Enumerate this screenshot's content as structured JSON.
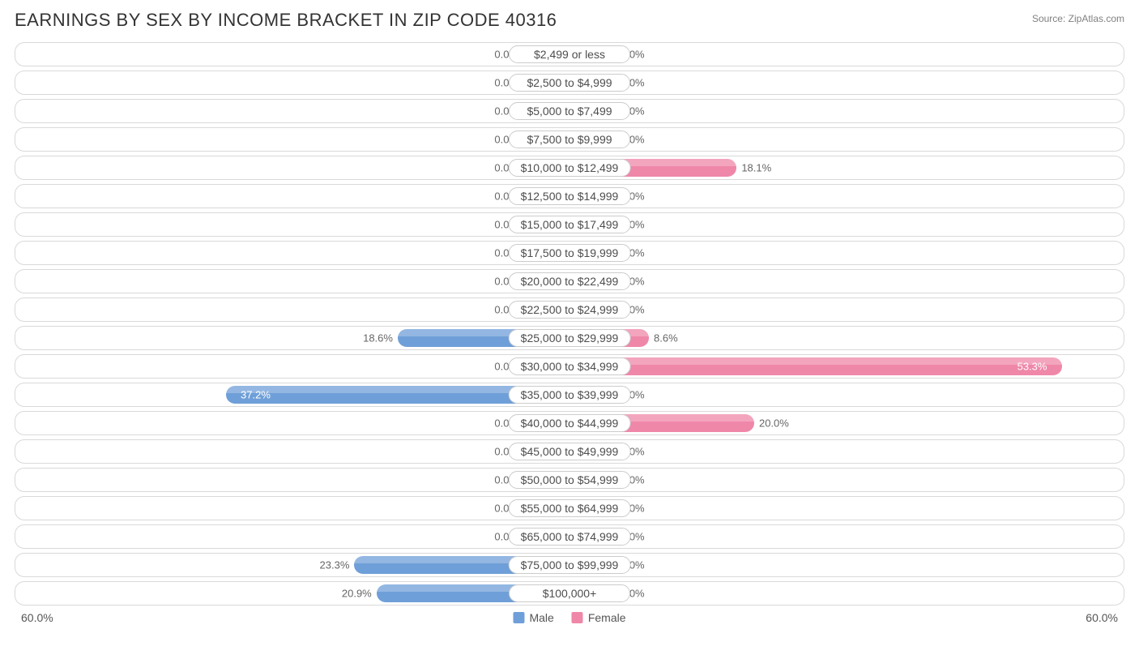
{
  "title": "EARNINGS BY SEX BY INCOME BRACKET IN ZIP CODE 40316",
  "source": "Source: ZipAtlas.com",
  "axis_max_pct": 60.0,
  "axis_label_left": "60.0%",
  "axis_label_right": "60.0%",
  "min_bar_pct": 5.0,
  "colors": {
    "male_bar": "#6f9fd8",
    "female_bar": "#ef87a9",
    "row_border": "#d9d9d9",
    "label_border": "#cccccc",
    "text": "#4d4d4d",
    "pct_text": "#666666",
    "pct_text_inside": "#ffffff",
    "title_text": "#333333",
    "source_text": "#808080",
    "background": "#ffffff"
  },
  "legend": {
    "male": "Male",
    "female": "Female"
  },
  "rows": [
    {
      "label": "$2,499 or less",
      "male": 0.0,
      "female": 0.0
    },
    {
      "label": "$2,500 to $4,999",
      "male": 0.0,
      "female": 0.0
    },
    {
      "label": "$5,000 to $7,499",
      "male": 0.0,
      "female": 0.0
    },
    {
      "label": "$7,500 to $9,999",
      "male": 0.0,
      "female": 0.0
    },
    {
      "label": "$10,000 to $12,499",
      "male": 0.0,
      "female": 18.1
    },
    {
      "label": "$12,500 to $14,999",
      "male": 0.0,
      "female": 0.0
    },
    {
      "label": "$15,000 to $17,499",
      "male": 0.0,
      "female": 0.0
    },
    {
      "label": "$17,500 to $19,999",
      "male": 0.0,
      "female": 0.0
    },
    {
      "label": "$20,000 to $22,499",
      "male": 0.0,
      "female": 0.0
    },
    {
      "label": "$22,500 to $24,999",
      "male": 0.0,
      "female": 0.0
    },
    {
      "label": "$25,000 to $29,999",
      "male": 18.6,
      "female": 8.6
    },
    {
      "label": "$30,000 to $34,999",
      "male": 0.0,
      "female": 53.3
    },
    {
      "label": "$35,000 to $39,999",
      "male": 37.2,
      "female": 0.0
    },
    {
      "label": "$40,000 to $44,999",
      "male": 0.0,
      "female": 20.0
    },
    {
      "label": "$45,000 to $49,999",
      "male": 0.0,
      "female": 0.0
    },
    {
      "label": "$50,000 to $54,999",
      "male": 0.0,
      "female": 0.0
    },
    {
      "label": "$55,000 to $64,999",
      "male": 0.0,
      "female": 0.0
    },
    {
      "label": "$65,000 to $74,999",
      "male": 0.0,
      "female": 0.0
    },
    {
      "label": "$75,000 to $99,999",
      "male": 23.3,
      "female": 0.0
    },
    {
      "label": "$100,000+",
      "male": 20.9,
      "female": 0.0
    }
  ]
}
